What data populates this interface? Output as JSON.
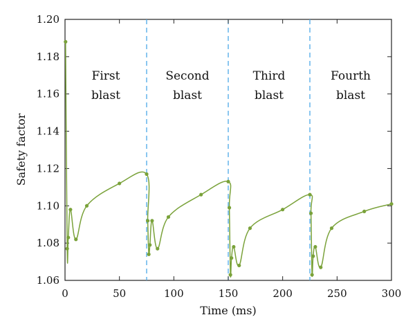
{
  "chart_data": {
    "type": "line",
    "title": "",
    "xlabel": "Time (ms)",
    "ylabel": "Safety factor",
    "xlim": [
      0,
      300
    ],
    "ylim": [
      1.06,
      1.2
    ],
    "x_ticks": [
      0,
      50,
      100,
      150,
      200,
      250,
      300
    ],
    "x_tick_labels": [
      "0",
      "50",
      "100",
      "150",
      "200",
      "250",
      "300"
    ],
    "y_ticks": [
      1.06,
      1.08,
      1.1,
      1.12,
      1.14,
      1.16,
      1.18,
      1.2
    ],
    "y_tick_labels": [
      "1.06",
      "1.08",
      "1.10",
      "1.12",
      "1.14",
      "1.16",
      "1.18",
      "1.20"
    ],
    "grid": false,
    "legend": "none",
    "line_color": "#7aa23a",
    "marker_color": "#7aa23a",
    "divider_color": "#4aa8e8",
    "dividers_x": [
      75,
      150,
      225
    ],
    "phase_labels": [
      {
        "line1": "First",
        "line2": "blast",
        "x": 37.5
      },
      {
        "line1": "Second",
        "line2": "blast",
        "x": 112.5
      },
      {
        "line1": "Third",
        "line2": "blast",
        "x": 187.5
      },
      {
        "line1": "Fourth",
        "line2": "blast",
        "x": 262.5
      }
    ],
    "series": [
      {
        "points": [
          [
            0.5,
            1.188
          ],
          [
            2,
            1.077
          ],
          [
            3,
            1.083
          ],
          [
            5,
            1.098
          ],
          [
            10,
            1.082
          ],
          [
            20,
            1.1
          ],
          [
            50,
            1.112
          ],
          [
            75,
            1.117
          ],
          [
            76,
            1.092
          ],
          [
            77,
            1.074
          ],
          [
            78,
            1.079
          ],
          [
            80,
            1.092
          ],
          [
            85,
            1.077
          ],
          [
            95,
            1.094
          ],
          [
            125,
            1.106
          ],
          [
            150,
            1.113
          ],
          [
            151,
            1.099
          ],
          [
            152,
            1.063
          ],
          [
            153,
            1.072
          ],
          [
            155,
            1.078
          ],
          [
            160,
            1.068
          ],
          [
            170,
            1.088
          ],
          [
            200,
            1.098
          ],
          [
            225,
            1.106
          ],
          [
            226,
            1.096
          ],
          [
            227,
            1.063
          ],
          [
            228,
            1.073
          ],
          [
            230,
            1.078
          ],
          [
            235,
            1.067
          ],
          [
            245,
            1.088
          ],
          [
            275,
            1.097
          ],
          [
            300,
            1.101
          ]
        ]
      }
    ]
  }
}
